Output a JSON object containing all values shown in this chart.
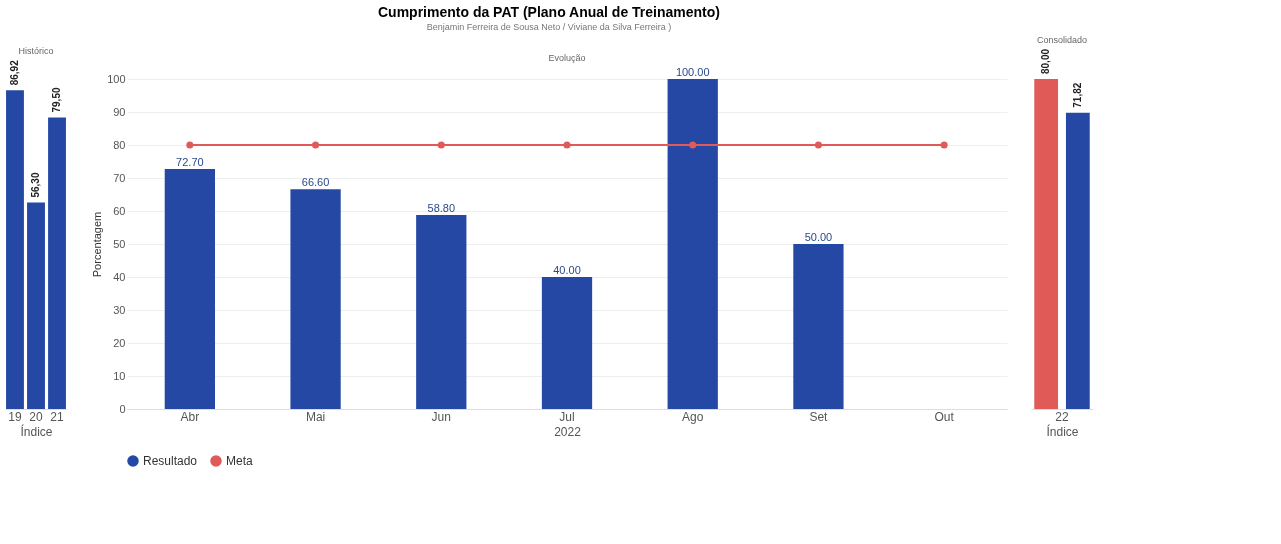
{
  "chart_data": [
    {
      "type": "other",
      "title": "Cumprimento da PAT (Plano Anual de Treinamento)",
      "subtitle": "Benjamin Ferreira de Sousa Neto / Viviane da Silva Ferreira )"
    },
    {
      "type": "bar",
      "title": "Histórico",
      "xlabel": "Índice",
      "categories": [
        "19",
        "20",
        "21"
      ],
      "tick_labels": "x",
      "series": [
        {
          "color": "#2448a4",
          "values": [
            86.92,
            56.3,
            79.5
          ],
          "value_labels": [
            "86,92",
            "56,30",
            "79,50"
          ]
        }
      ]
    },
    {
      "type": "bar",
      "title": "Evolução",
      "xlabel": "2022",
      "ylabel": "Porcentagem",
      "categories": [
        "Abr",
        "Mai",
        "Jun",
        "Jul",
        "Ago",
        "Set",
        "Out"
      ],
      "ylim": [
        0,
        100
      ],
      "yticks": [
        0,
        10,
        20,
        30,
        40,
        50,
        60,
        70,
        80,
        90,
        100
      ],
      "grid": "y",
      "legend": "bottom",
      "marker": "circle",
      "series": [
        {
          "name": "Resultado",
          "color": "#2448a4",
          "values": [
            72.7,
            66.6,
            58.8,
            40.0,
            100.0,
            50.0,
            null
          ],
          "value_labels": [
            "72.70",
            "66.60",
            "58.80",
            "40.00",
            "100.00",
            "50.00",
            null
          ]
        },
        {
          "name": "Meta",
          "type": "line",
          "color": "#e05a57",
          "values": [
            80,
            80,
            80,
            80,
            80,
            80,
            80
          ]
        }
      ]
    },
    {
      "type": "bar",
      "title": "Consolidado",
      "xlabel": "Índice",
      "categories": [
        "22"
      ],
      "tick_labels": "x",
      "series": [
        {
          "color": "#e05a57",
          "values": [
            80.0
          ],
          "value_labels": [
            "80,00"
          ]
        },
        {
          "color": "#2448a4",
          "values": [
            71.82
          ],
          "value_labels": [
            "71,82"
          ]
        }
      ]
    }
  ]
}
